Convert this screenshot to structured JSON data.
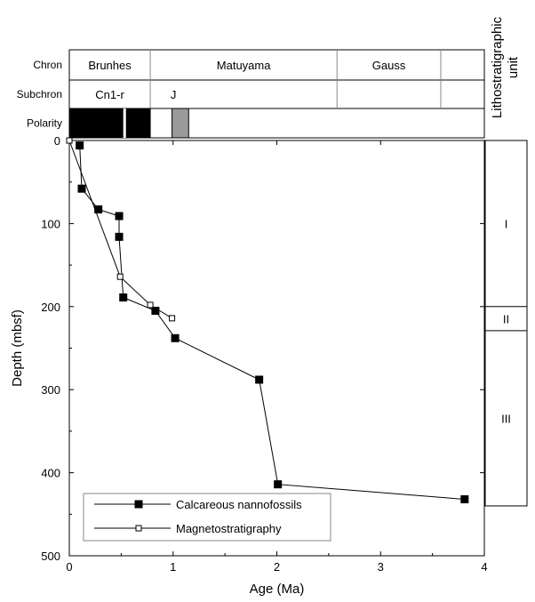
{
  "chart_data": {
    "type": "scatter",
    "xlabel": "Age (Ma)",
    "ylabel": "Depth (mbsf)",
    "xlim": [
      0,
      4
    ],
    "ylim": [
      0,
      500
    ],
    "y_inverted": true,
    "x_ticks": [
      "0",
      "1",
      "2",
      "3",
      "4"
    ],
    "y_ticks": [
      "0",
      "100",
      "200",
      "300",
      "400",
      "500"
    ],
    "series": [
      {
        "name": "Calcareous nannofossils",
        "marker": "filled-square",
        "color": "#000000",
        "points": [
          {
            "x": 0.1,
            "y": 6
          },
          {
            "x": 0.12,
            "y": 58
          },
          {
            "x": 0.28,
            "y": 83
          },
          {
            "x": 0.48,
            "y": 91
          },
          {
            "x": 0.48,
            "y": 116
          },
          {
            "x": 0.52,
            "y": 189
          },
          {
            "x": 0.83,
            "y": 205
          },
          {
            "x": 1.02,
            "y": 238
          },
          {
            "x": 1.83,
            "y": 288
          },
          {
            "x": 2.01,
            "y": 414
          },
          {
            "x": 3.81,
            "y": 432
          }
        ]
      },
      {
        "name": "Magnetostratigraphy",
        "marker": "open-square",
        "color": "#000000",
        "points": [
          {
            "x": 0.0,
            "y": 0
          },
          {
            "x": 0.49,
            "y": 164
          },
          {
            "x": 0.78,
            "y": 198
          },
          {
            "x": 0.99,
            "y": 214
          }
        ]
      }
    ],
    "legend": {
      "position": "bottom-left",
      "entries": [
        "Calcareous nannofossils",
        "Magnetostratigraphy"
      ]
    },
    "rows": {
      "chron_label": "Chron",
      "subchron_label": "Subchron",
      "polarity_label": "Polarity"
    },
    "chrons": [
      {
        "name": "Brunhes",
        "start": 0,
        "end": 0.78
      },
      {
        "name": "Matuyama",
        "start": 0.78,
        "end": 2.58
      },
      {
        "name": "Gauss",
        "start": 2.58,
        "end": 3.58
      },
      {
        "name": "",
        "start": 3.58,
        "end": 4.0
      }
    ],
    "subchrons": [
      {
        "name": "Cn1-r",
        "start": 0,
        "end": 0.78
      },
      {
        "name": "J",
        "start": 0.78,
        "end": 2.58
      },
      {
        "name": "",
        "start": 2.58,
        "end": 3.58
      },
      {
        "name": "",
        "start": 3.58,
        "end": 4.0
      }
    ],
    "polarity": [
      {
        "start": 0,
        "end": 0.52,
        "fill": "#000000"
      },
      {
        "start": 0.52,
        "end": 0.55,
        "fill": "#ffffff"
      },
      {
        "start": 0.55,
        "end": 0.78,
        "fill": "#000000"
      },
      {
        "start": 0.99,
        "end": 1.15,
        "fill": "#9a9a9a"
      }
    ],
    "lithostratigraphy": {
      "title_line1": "Lithostratigraphic",
      "title_line2": "unit",
      "units": [
        {
          "name": "I",
          "top": 0,
          "bottom": 200
        },
        {
          "name": "II",
          "top": 200,
          "bottom": 229
        },
        {
          "name": "III",
          "top": 229,
          "bottom": 440
        }
      ]
    }
  }
}
